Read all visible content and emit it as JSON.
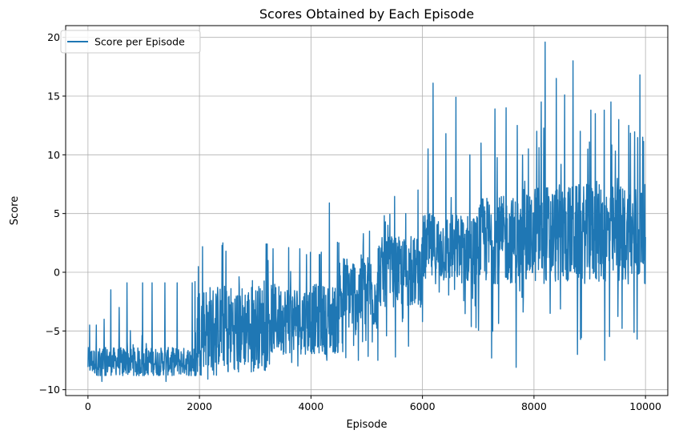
{
  "chart_data": {
    "type": "line",
    "title": "Scores Obtained by Each Episode",
    "xlabel": "Episode",
    "ylabel": "Score",
    "xlim": [
      -400,
      10400
    ],
    "ylim": [
      -10.5,
      21
    ],
    "xticks": [
      0,
      2000,
      4000,
      6000,
      8000,
      10000
    ],
    "xtick_labels": [
      "0",
      "2000",
      "4000",
      "6000",
      "8000",
      "10000"
    ],
    "yticks": [
      -10,
      -5,
      0,
      5,
      10,
      15,
      20
    ],
    "ytick_labels": [
      "−10",
      "−5",
      "0",
      "5",
      "10",
      "15",
      "20"
    ],
    "grid": true,
    "legend_position": "top-left",
    "series": [
      {
        "name": "Score per Episode",
        "color": "#1f77b4",
        "n_points": 10000,
        "band_segments": [
          {
            "x": [
              0,
              1950
            ],
            "low": -8.8,
            "high": -6.4,
            "floor": -8.8
          },
          {
            "x": [
              1950,
              3200
            ],
            "low": -8.2,
            "high": -1.0,
            "floor": -8.8
          },
          {
            "x": [
              3200,
              4500
            ],
            "low": -7.0,
            "high": -1.0,
            "floor": -8.0
          },
          {
            "x": [
              4500,
              5200
            ],
            "low": -5.0,
            "high": 1.5,
            "floor": -7.5
          },
          {
            "x": [
              5200,
              6000
            ],
            "low": -3.0,
            "high": 3.0,
            "floor": -7.5
          },
          {
            "x": [
              6000,
              7000
            ],
            "low": -1.0,
            "high": 5.0,
            "floor": -6.0
          },
          {
            "x": [
              7000,
              8000
            ],
            "low": -1.0,
            "high": 6.5,
            "floor": -8.0
          },
          {
            "x": [
              8000,
              10000
            ],
            "low": -1.0,
            "high": 7.5,
            "floor": -7.5
          }
        ],
        "spikes": [
          {
            "x": 30,
            "y": -4.5
          },
          {
            "x": 150,
            "y": -4.5
          },
          {
            "x": 290,
            "y": -4.0
          },
          {
            "x": 410,
            "y": -1.5
          },
          {
            "x": 560,
            "y": -3.0
          },
          {
            "x": 700,
            "y": -0.9
          },
          {
            "x": 980,
            "y": -0.9
          },
          {
            "x": 1150,
            "y": -0.9
          },
          {
            "x": 1380,
            "y": -0.9
          },
          {
            "x": 1600,
            "y": -0.9
          },
          {
            "x": 1870,
            "y": -0.9
          },
          {
            "x": 1920,
            "y": -0.8
          },
          {
            "x": 3230,
            "y": 1.0
          },
          {
            "x": 3320,
            "y": 2.0
          },
          {
            "x": 3600,
            "y": 2.1
          },
          {
            "x": 3800,
            "y": 2.0
          },
          {
            "x": 3920,
            "y": 1.5
          },
          {
            "x": 4150,
            "y": 1.5
          },
          {
            "x": 4330,
            "y": 5.9
          },
          {
            "x": 4500,
            "y": 2.5
          },
          {
            "x": 5050,
            "y": 3.5
          },
          {
            "x": 5380,
            "y": 4.0
          },
          {
            "x": 5700,
            "y": 5.0
          },
          {
            "x": 5920,
            "y": 7.0
          },
          {
            "x": 6100,
            "y": 10.5
          },
          {
            "x": 6190,
            "y": 16.1
          },
          {
            "x": 6420,
            "y": 11.8
          },
          {
            "x": 6600,
            "y": 14.9
          },
          {
            "x": 6850,
            "y": 10.0
          },
          {
            "x": 7050,
            "y": 11.0
          },
          {
            "x": 7300,
            "y": 13.9
          },
          {
            "x": 7500,
            "y": 14.0
          },
          {
            "x": 7700,
            "y": 12.5
          },
          {
            "x": 7900,
            "y": 10.5
          },
          {
            "x": 8050,
            "y": 12.0
          },
          {
            "x": 8130,
            "y": 14.5
          },
          {
            "x": 8200,
            "y": 19.6
          },
          {
            "x": 8400,
            "y": 16.5
          },
          {
            "x": 8550,
            "y": 15.1
          },
          {
            "x": 8700,
            "y": 18.0
          },
          {
            "x": 8830,
            "y": 12.0
          },
          {
            "x": 9020,
            "y": 13.8
          },
          {
            "x": 9100,
            "y": 13.5
          },
          {
            "x": 9260,
            "y": 13.8
          },
          {
            "x": 9380,
            "y": 14.5
          },
          {
            "x": 9520,
            "y": 13.0
          },
          {
            "x": 9700,
            "y": 12.5
          },
          {
            "x": 9900,
            "y": 16.8
          },
          {
            "x": 9950,
            "y": 11.5
          }
        ],
        "dips": [
          {
            "x": 250,
            "y": -9.3
          },
          {
            "x": 1400,
            "y": -9.3
          },
          {
            "x": 2150,
            "y": -9.1
          },
          {
            "x": 4850,
            "y": -7.5
          },
          {
            "x": 5200,
            "y": -7.5
          },
          {
            "x": 5750,
            "y": -6.3
          },
          {
            "x": 7680,
            "y": -8.1
          },
          {
            "x": 8400,
            "y": -6.5
          },
          {
            "x": 8780,
            "y": -7.0
          },
          {
            "x": 9270,
            "y": -7.5
          },
          {
            "x": 9850,
            "y": -5.7
          }
        ],
        "last_value": 3.0
      }
    ]
  }
}
